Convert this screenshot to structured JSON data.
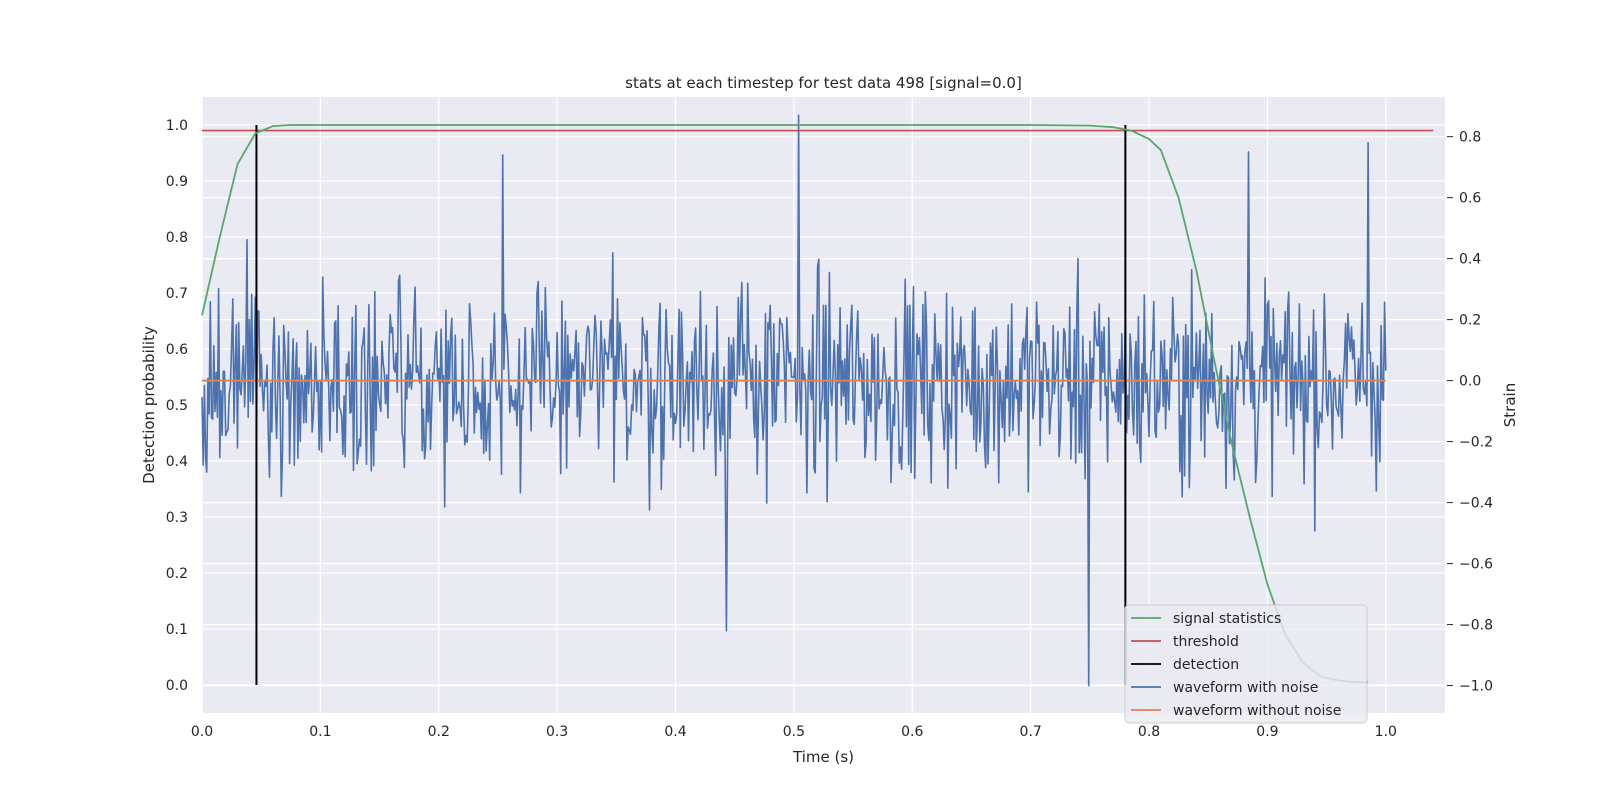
{
  "chart_data": {
    "type": "line",
    "title": "stats at each timestep for test data 498 [signal=0.0]",
    "xlabel": "Time (s)",
    "ylabel": "Detection probability",
    "y2label": "Strain",
    "xlim": [
      0.0,
      1.05
    ],
    "ylim": [
      -0.05,
      1.05
    ],
    "y2lim": [
      -1.09,
      0.93
    ],
    "xticks": [
      "0.0",
      "0.1",
      "0.2",
      "0.3",
      "0.4",
      "0.5",
      "0.6",
      "0.7",
      "0.8",
      "0.9",
      "1.0"
    ],
    "yticks": [
      "0.0",
      "0.1",
      "0.2",
      "0.3",
      "0.4",
      "0.5",
      "0.6",
      "0.7",
      "0.8",
      "0.9",
      "1.0"
    ],
    "y2ticks": [
      "−1.0",
      "−0.8",
      "−0.6",
      "−0.4",
      "−0.2",
      "0.0",
      "0.2",
      "0.4",
      "0.6",
      "0.8"
    ],
    "grid": true,
    "legend": "lower-right",
    "colors": {
      "signal": "#55a868",
      "threshold": "#c44e52",
      "detection": "#000000",
      "noisy": "#4c72b0",
      "clean": "#dd8452",
      "background": "#eaeaf2"
    },
    "series": [
      {
        "name": "signal statistics",
        "axis": "left",
        "x": [
          0.0,
          0.015,
          0.03,
          0.045,
          0.06,
          0.075,
          0.1,
          0.3,
          0.5,
          0.7,
          0.75,
          0.77,
          0.785,
          0.8,
          0.81,
          0.825,
          0.84,
          0.855,
          0.87,
          0.885,
          0.9,
          0.915,
          0.93,
          0.945,
          0.96,
          0.975,
          0.985
        ],
        "values": [
          0.66,
          0.8,
          0.93,
          0.985,
          0.998,
          1.0,
          1.0,
          1.0,
          1.0,
          1.0,
          0.999,
          0.996,
          0.99,
          0.975,
          0.955,
          0.87,
          0.74,
          0.58,
          0.43,
          0.3,
          0.18,
          0.09,
          0.04,
          0.015,
          0.008,
          0.005,
          0.005
        ]
      },
      {
        "name": "threshold",
        "axis": "left",
        "x": [
          0.0,
          1.04
        ],
        "values": [
          0.99,
          0.99
        ]
      },
      {
        "name": "detection",
        "axis": "left",
        "segments": [
          [
            0.046,
            0.0,
            1.0
          ],
          [
            0.78,
            0.0,
            1.0
          ]
        ]
      },
      {
        "name": "waveform with noise",
        "axis": "right",
        "x_range": [
          0.0,
          1.0
        ],
        "amplitude": 0.22,
        "peaks": [
          [
            0.504,
            0.87
          ],
          [
            0.749,
            -1.0
          ],
          [
            0.443,
            -0.82
          ],
          [
            0.254,
            0.74
          ],
          [
            0.985,
            0.78
          ],
          [
            0.884,
            0.75
          ]
        ]
      },
      {
        "name": "waveform without noise",
        "axis": "right",
        "x": [
          0.0,
          1.0
        ],
        "values": [
          0.0,
          0.0
        ]
      }
    ]
  }
}
